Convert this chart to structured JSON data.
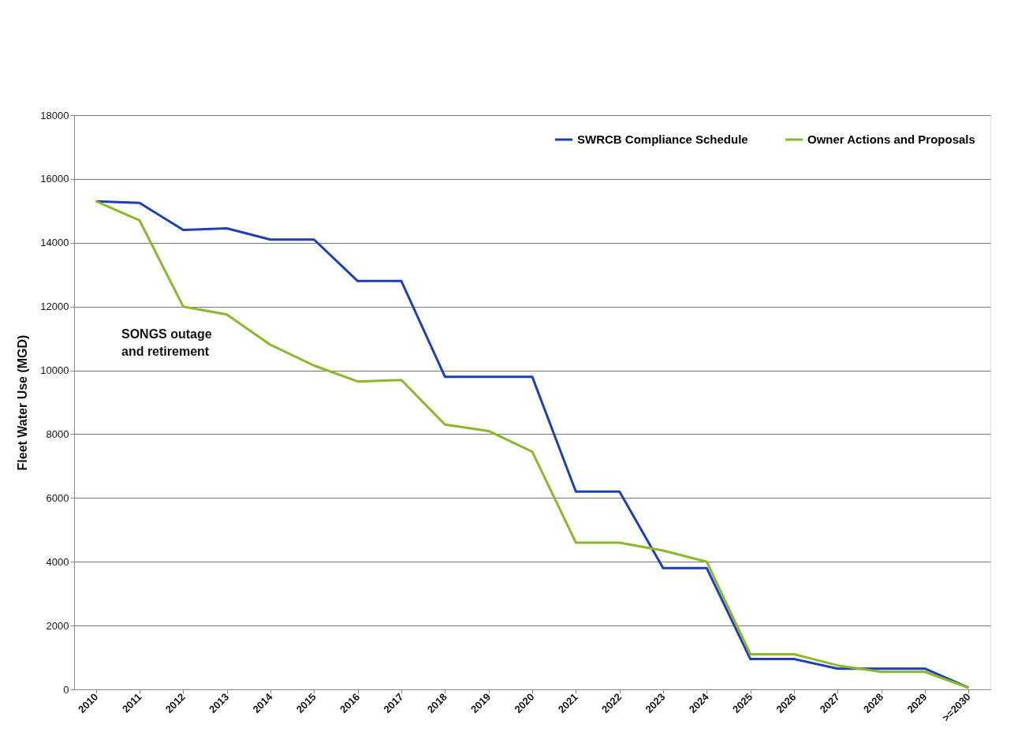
{
  "chart_data": {
    "type": "line",
    "categories": [
      "2010",
      "2011",
      "2012",
      "2013",
      "2014",
      "2015",
      "2016",
      "2017",
      "2018",
      "2019",
      "2020",
      "2021",
      "2022",
      "2023",
      "2024",
      "2025",
      "2026",
      "2027",
      "2028",
      "2029",
      ">=2030"
    ],
    "series": [
      {
        "name": "SWRCB Compliance Schedule",
        "color": "#1f3fb0",
        "values": [
          15300,
          15250,
          14400,
          14450,
          14100,
          14100,
          12800,
          12800,
          9800,
          9800,
          9800,
          6200,
          6200,
          3800,
          3800,
          950,
          950,
          650,
          650,
          650,
          50
        ]
      },
      {
        "name": "Owner Actions and Proposals",
        "color": "#8ab82a",
        "values": [
          15300,
          14700,
          12000,
          11750,
          10800,
          10150,
          9650,
          9700,
          8300,
          8100,
          7450,
          4600,
          4600,
          4350,
          4000,
          1100,
          1100,
          750,
          550,
          550,
          50
        ]
      }
    ],
    "ylabel": "Fleet Water Use (MGD)",
    "ylim": [
      0,
      18000
    ],
    "yticks": [
      0,
      2000,
      4000,
      6000,
      8000,
      10000,
      12000,
      14000,
      16000,
      18000
    ],
    "grid": "y",
    "legend": "top right",
    "marker": "none",
    "line_style": "solid",
    "annotations": [
      "SONGS outage\nand retirement"
    ]
  }
}
